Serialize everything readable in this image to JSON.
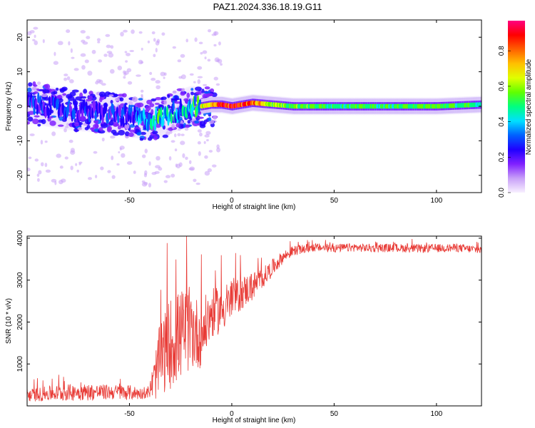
{
  "title": "PAZ1.2024.336.18.19.G11",
  "chart_data": [
    {
      "type": "heatmap",
      "xlabel": "Height of straight line (km)",
      "ylabel": "Frequency (Hz)",
      "xlim": [
        -100,
        122
      ],
      "ylim": [
        -25,
        25
      ],
      "xticks": [
        -50,
        0,
        50,
        100
      ],
      "yticks": [
        -20,
        -10,
        0,
        10,
        20
      ],
      "colorbar": {
        "label": "Normalized spectral amplitude",
        "range": [
          0,
          0.97
        ],
        "ticks": [
          0.0,
          0.2,
          0.4,
          0.6,
          0.8
        ],
        "colormap": [
          "#f8f0ff",
          "#c8a0f8",
          "#8020ff",
          "#2000ff",
          "#0060ff",
          "#00e0ff",
          "#00ff80",
          "#60ff00",
          "#e0ff00",
          "#ffc000",
          "#ff6000",
          "#ff0000",
          "#ff0080"
        ]
      },
      "ridge": {
        "description_x": [
          -100,
          -90,
          -80,
          -70,
          -60,
          -50,
          -45,
          -40,
          -35,
          -30,
          -25,
          -20,
          -15,
          -10,
          -5,
          0,
          5,
          10,
          20,
          30,
          50,
          80,
          100,
          122
        ],
        "frequency": [
          1,
          0,
          -1,
          -1.5,
          -2,
          -3,
          -3.5,
          -4,
          -3.5,
          -2,
          -1,
          0,
          0,
          0.5,
          0.5,
          0,
          0.5,
          1,
          0.5,
          0,
          0,
          0,
          0,
          0.5
        ],
        "amplitude": [
          0.3,
          0.3,
          0.3,
          0.3,
          0.3,
          0.35,
          0.4,
          0.45,
          0.5,
          0.45,
          0.45,
          0.5,
          0.6,
          0.75,
          0.85,
          0.9,
          0.85,
          0.8,
          0.6,
          0.55,
          0.5,
          0.5,
          0.55,
          0.45
        ]
      }
    },
    {
      "type": "line",
      "xlabel": "Height of straight line (km)",
      "ylabel": "SNR (10 * v/v)",
      "xlim": [
        -100,
        122
      ],
      "ylim": [
        0,
        4050
      ],
      "xticks": [
        -50,
        0,
        50,
        100
      ],
      "yticks": [
        1000,
        2000,
        3000,
        4000
      ],
      "color": "#e83a35",
      "x": [
        -100,
        -90,
        -80,
        -70,
        -60,
        -50,
        -45,
        -42,
        -40,
        -38,
        -35,
        -30,
        -25,
        -20,
        -18,
        -15,
        -12,
        -10,
        -5,
        0,
        5,
        10,
        15,
        20,
        25,
        30,
        40,
        50,
        60,
        70,
        80,
        90,
        100,
        110,
        122
      ],
      "y": [
        250,
        290,
        320,
        330,
        330,
        320,
        300,
        280,
        380,
        620,
        1100,
        1500,
        1700,
        1850,
        1750,
        1700,
        2000,
        2200,
        2300,
        2500,
        2700,
        2850,
        3050,
        3300,
        3550,
        3700,
        3780,
        3760,
        3780,
        3760,
        3770,
        3750,
        3760,
        3770,
        3720
      ],
      "noise": [
        150,
        180,
        200,
        200,
        180,
        180,
        150,
        100,
        200,
        500,
        900,
        1100,
        1100,
        1000,
        900,
        800,
        700,
        600,
        550,
        450,
        400,
        350,
        250,
        200,
        150,
        120,
        100,
        100,
        100,
        100,
        100,
        100,
        100,
        100,
        100
      ]
    }
  ]
}
